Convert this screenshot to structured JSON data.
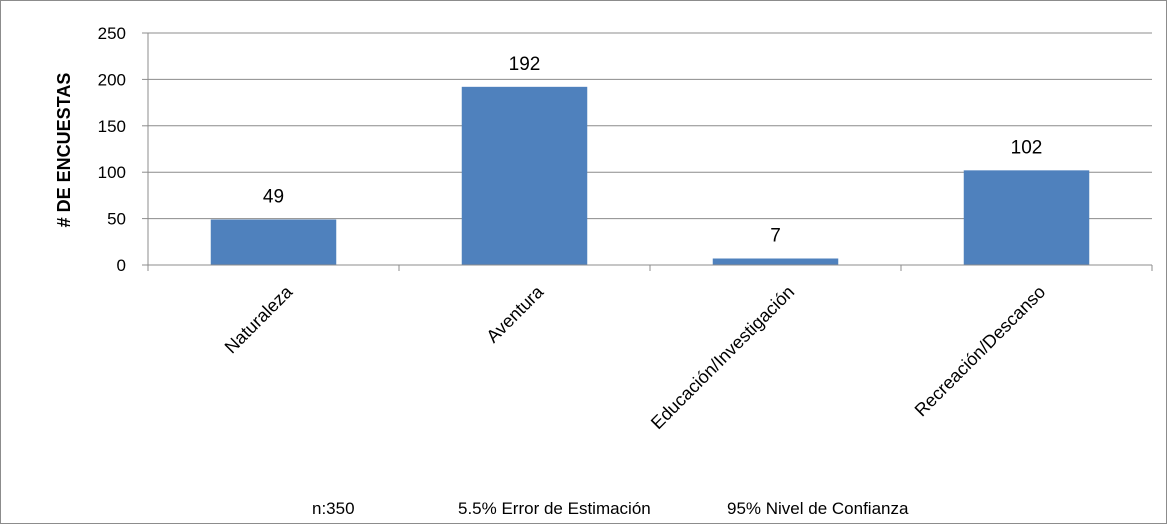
{
  "chart_data": {
    "type": "bar",
    "categories": [
      "Naturaleza",
      "Aventura",
      "Educación/Investigación",
      "Recreación/Descanso"
    ],
    "values": [
      49,
      192,
      7,
      102
    ],
    "data_labels": [
      "49",
      "192",
      "7",
      "102"
    ],
    "ylabel": "# DE ENCUESTAS",
    "xlabel": "",
    "ylim": [
      0,
      250
    ],
    "yticks": [
      0,
      50,
      100,
      150,
      200,
      250
    ],
    "ytick_labels": [
      "0",
      "50",
      "100",
      "150",
      "200",
      "250"
    ],
    "grid": true,
    "legend": "none",
    "bar_color": "#4F81BD",
    "footer": {
      "sample": "n:350",
      "error": "5.5% Error de Estimación",
      "confidence": "95% Nivel de Confianza"
    }
  }
}
